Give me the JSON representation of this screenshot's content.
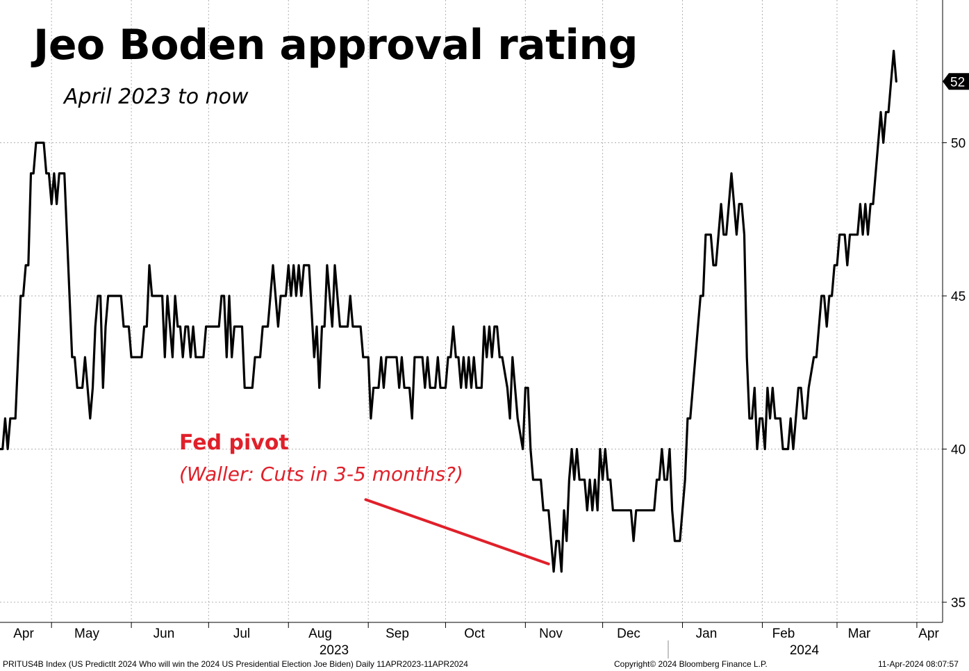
{
  "colors": {
    "line": "#000000",
    "grid": "#b0b0b0",
    "annotation": "#e0202a",
    "background": "#ffffff"
  },
  "chart_data": {
    "type": "line",
    "title": "Jeo Boden approval rating",
    "subtitle": "April 2023 to now",
    "ylim": [
      34,
      54
    ],
    "yticks": [
      "35",
      "40",
      "45",
      "50"
    ],
    "last_value_label": "52",
    "last_value": 52,
    "x_months": [
      "Apr",
      "May",
      "Jun",
      "Jul",
      "Aug",
      "Sep",
      "Oct",
      "Nov",
      "Dec",
      "Jan",
      "Feb",
      "Mar",
      "Apr"
    ],
    "year_labels": [
      "2023",
      "2024"
    ],
    "grid": true,
    "x_range": [
      "2023-04-11",
      "2024-04-11"
    ],
    "series": [
      {
        "points": [
          [
            "2023-04-11",
            40
          ],
          [
            "2023-04-12",
            40
          ],
          [
            "2023-04-13",
            41
          ],
          [
            "2023-04-14",
            40
          ],
          [
            "2023-04-15",
            41
          ],
          [
            "2023-04-17",
            41
          ],
          [
            "2023-04-18",
            43
          ],
          [
            "2023-04-19",
            45
          ],
          [
            "2023-04-20",
            45
          ],
          [
            "2023-04-21",
            46
          ],
          [
            "2023-04-22",
            46
          ],
          [
            "2023-04-23",
            49
          ],
          [
            "2023-04-24",
            49
          ],
          [
            "2023-04-25",
            50
          ],
          [
            "2023-04-28",
            50
          ],
          [
            "2023-04-29",
            49
          ],
          [
            "2023-04-30",
            49
          ],
          [
            "2023-05-01",
            48
          ],
          [
            "2023-05-02",
            49
          ],
          [
            "2023-05-03",
            48
          ],
          [
            "2023-05-04",
            49
          ],
          [
            "2023-05-06",
            49
          ],
          [
            "2023-05-07",
            47
          ],
          [
            "2023-05-09",
            43
          ],
          [
            "2023-05-10",
            43
          ],
          [
            "2023-05-11",
            42
          ],
          [
            "2023-05-13",
            42
          ],
          [
            "2023-05-14",
            43
          ],
          [
            "2023-05-16",
            41
          ],
          [
            "2023-05-17",
            42
          ],
          [
            "2023-05-18",
            44
          ],
          [
            "2023-05-19",
            45
          ],
          [
            "2023-05-20",
            45
          ],
          [
            "2023-05-21",
            42
          ],
          [
            "2023-05-22",
            44
          ],
          [
            "2023-05-23",
            45
          ],
          [
            "2023-05-28",
            45
          ],
          [
            "2023-05-29",
            44
          ],
          [
            "2023-05-31",
            44
          ],
          [
            "2023-06-01",
            43
          ],
          [
            "2023-06-05",
            43
          ],
          [
            "2023-06-06",
            44
          ],
          [
            "2023-06-07",
            44
          ],
          [
            "2023-06-08",
            46
          ],
          [
            "2023-06-09",
            45
          ],
          [
            "2023-06-13",
            45
          ],
          [
            "2023-06-14",
            43
          ],
          [
            "2023-06-15",
            45
          ],
          [
            "2023-06-16",
            44
          ],
          [
            "2023-06-17",
            43
          ],
          [
            "2023-06-18",
            45
          ],
          [
            "2023-06-19",
            44
          ],
          [
            "2023-06-20",
            44
          ],
          [
            "2023-06-21",
            43
          ],
          [
            "2023-06-22",
            44
          ],
          [
            "2023-06-23",
            44
          ],
          [
            "2023-06-24",
            43
          ],
          [
            "2023-06-25",
            44
          ],
          [
            "2023-06-26",
            43
          ],
          [
            "2023-06-29",
            43
          ],
          [
            "2023-06-30",
            44
          ],
          [
            "2023-07-05",
            44
          ],
          [
            "2023-07-06",
            45
          ],
          [
            "2023-07-07",
            45
          ],
          [
            "2023-07-08",
            43
          ],
          [
            "2023-07-09",
            45
          ],
          [
            "2023-07-10",
            43
          ],
          [
            "2023-07-11",
            44
          ],
          [
            "2023-07-14",
            44
          ],
          [
            "2023-07-15",
            42
          ],
          [
            "2023-07-18",
            42
          ],
          [
            "2023-07-19",
            43
          ],
          [
            "2023-07-21",
            43
          ],
          [
            "2023-07-22",
            44
          ],
          [
            "2023-07-24",
            44
          ],
          [
            "2023-07-25",
            45
          ],
          [
            "2023-07-26",
            46
          ],
          [
            "2023-07-28",
            44
          ],
          [
            "2023-07-29",
            45
          ],
          [
            "2023-07-31",
            45
          ],
          [
            "2023-08-01",
            46
          ],
          [
            "2023-08-02",
            45
          ],
          [
            "2023-08-03",
            46
          ],
          [
            "2023-08-04",
            45
          ],
          [
            "2023-08-05",
            46
          ],
          [
            "2023-08-06",
            45
          ],
          [
            "2023-08-07",
            46
          ],
          [
            "2023-08-09",
            46
          ],
          [
            "2023-08-11",
            43
          ],
          [
            "2023-08-12",
            44
          ],
          [
            "2023-08-13",
            42
          ],
          [
            "2023-08-14",
            44
          ],
          [
            "2023-08-15",
            44
          ],
          [
            "2023-08-16",
            46
          ],
          [
            "2023-08-18",
            44
          ],
          [
            "2023-08-19",
            46
          ],
          [
            "2023-08-21",
            44
          ],
          [
            "2023-08-24",
            44
          ],
          [
            "2023-08-25",
            45
          ],
          [
            "2023-08-26",
            44
          ],
          [
            "2023-08-29",
            44
          ],
          [
            "2023-08-30",
            43
          ],
          [
            "2023-09-01",
            43
          ],
          [
            "2023-09-02",
            41
          ],
          [
            "2023-09-03",
            42
          ],
          [
            "2023-09-05",
            42
          ],
          [
            "2023-09-06",
            43
          ],
          [
            "2023-09-07",
            42
          ],
          [
            "2023-09-08",
            43
          ],
          [
            "2023-09-12",
            43
          ],
          [
            "2023-09-13",
            42
          ],
          [
            "2023-09-14",
            43
          ],
          [
            "2023-09-15",
            42
          ],
          [
            "2023-09-17",
            42
          ],
          [
            "2023-09-18",
            41
          ],
          [
            "2023-09-19",
            43
          ],
          [
            "2023-09-22",
            43
          ],
          [
            "2023-09-23",
            42
          ],
          [
            "2023-09-24",
            43
          ],
          [
            "2023-09-25",
            42
          ],
          [
            "2023-09-27",
            42
          ],
          [
            "2023-09-28",
            43
          ],
          [
            "2023-09-29",
            42
          ],
          [
            "2023-10-01",
            42
          ],
          [
            "2023-10-02",
            43
          ],
          [
            "2023-10-03",
            43
          ],
          [
            "2023-10-04",
            44
          ],
          [
            "2023-10-05",
            43
          ],
          [
            "2023-10-06",
            43
          ],
          [
            "2023-10-07",
            42
          ],
          [
            "2023-10-08",
            43
          ],
          [
            "2023-10-09",
            42
          ],
          [
            "2023-10-10",
            43
          ],
          [
            "2023-10-11",
            42
          ],
          [
            "2023-10-12",
            43
          ],
          [
            "2023-10-13",
            42
          ],
          [
            "2023-10-15",
            42
          ],
          [
            "2023-10-16",
            44
          ],
          [
            "2023-10-17",
            43
          ],
          [
            "2023-10-18",
            44
          ],
          [
            "2023-10-19",
            43
          ],
          [
            "2023-10-20",
            44
          ],
          [
            "2023-10-21",
            44
          ],
          [
            "2023-10-22",
            43
          ],
          [
            "2023-10-23",
            43
          ],
          [
            "2023-10-25",
            42
          ],
          [
            "2023-10-26",
            41
          ],
          [
            "2023-10-27",
            43
          ],
          [
            "2023-10-28",
            42
          ],
          [
            "2023-10-29",
            41
          ],
          [
            "2023-10-31",
            40
          ],
          [
            "2023-11-01",
            42
          ],
          [
            "2023-11-02",
            42
          ],
          [
            "2023-11-03",
            40
          ],
          [
            "2023-11-04",
            39
          ],
          [
            "2023-11-07",
            39
          ],
          [
            "2023-11-08",
            38
          ],
          [
            "2023-11-10",
            38
          ],
          [
            "2023-11-11",
            37
          ],
          [
            "2023-11-12",
            36
          ],
          [
            "2023-11-13",
            37
          ],
          [
            "2023-11-14",
            37
          ],
          [
            "2023-11-15",
            36
          ],
          [
            "2023-11-16",
            38
          ],
          [
            "2023-11-17",
            37
          ],
          [
            "2023-11-18",
            39
          ],
          [
            "2023-11-19",
            40
          ],
          [
            "2023-11-20",
            39
          ],
          [
            "2023-11-21",
            40
          ],
          [
            "2023-11-22",
            39
          ],
          [
            "2023-11-24",
            39
          ],
          [
            "2023-11-25",
            38
          ],
          [
            "2023-11-26",
            39
          ],
          [
            "2023-11-27",
            38
          ],
          [
            "2023-11-28",
            39
          ],
          [
            "2023-11-29",
            38
          ],
          [
            "2023-11-30",
            40
          ],
          [
            "2023-12-01",
            39
          ],
          [
            "2023-12-02",
            40
          ],
          [
            "2023-12-03",
            39
          ],
          [
            "2023-12-04",
            39
          ],
          [
            "2023-12-05",
            38
          ],
          [
            "2023-12-12",
            38
          ],
          [
            "2023-12-13",
            37
          ],
          [
            "2023-12-14",
            38
          ],
          [
            "2023-12-21",
            38
          ],
          [
            "2023-12-22",
            39
          ],
          [
            "2023-12-23",
            39
          ],
          [
            "2023-12-24",
            40
          ],
          [
            "2023-12-25",
            39
          ],
          [
            "2023-12-26",
            39
          ],
          [
            "2023-12-27",
            40
          ],
          [
            "2023-12-28",
            38
          ],
          [
            "2023-12-29",
            37
          ],
          [
            "2023-12-31",
            37
          ],
          [
            "2024-01-01",
            38
          ],
          [
            "2024-01-02",
            39
          ],
          [
            "2024-01-03",
            41
          ],
          [
            "2024-01-04",
            41
          ],
          [
            "2024-01-05",
            42
          ],
          [
            "2024-01-06",
            43
          ],
          [
            "2024-01-07",
            44
          ],
          [
            "2024-01-08",
            45
          ],
          [
            "2024-01-09",
            45
          ],
          [
            "2024-01-10",
            47
          ],
          [
            "2024-01-12",
            47
          ],
          [
            "2024-01-13",
            46
          ],
          [
            "2024-01-14",
            46
          ],
          [
            "2024-01-15",
            47
          ],
          [
            "2024-01-16",
            48
          ],
          [
            "2024-01-17",
            47
          ],
          [
            "2024-01-18",
            47
          ],
          [
            "2024-01-19",
            48
          ],
          [
            "2024-01-20",
            49
          ],
          [
            "2024-01-21",
            48
          ],
          [
            "2024-01-22",
            47
          ],
          [
            "2024-01-23",
            48
          ],
          [
            "2024-01-24",
            48
          ],
          [
            "2024-01-25",
            47
          ],
          [
            "2024-01-26",
            43
          ],
          [
            "2024-01-27",
            41
          ],
          [
            "2024-01-28",
            41
          ],
          [
            "2024-01-29",
            42
          ],
          [
            "2024-01-30",
            40
          ],
          [
            "2024-01-31",
            41
          ],
          [
            "2024-02-01",
            41
          ],
          [
            "2024-02-02",
            40
          ],
          [
            "2024-02-03",
            42
          ],
          [
            "2024-02-04",
            41
          ],
          [
            "2024-02-05",
            42
          ],
          [
            "2024-02-06",
            41
          ],
          [
            "2024-02-08",
            41
          ],
          [
            "2024-02-09",
            40
          ],
          [
            "2024-02-11",
            40
          ],
          [
            "2024-02-12",
            41
          ],
          [
            "2024-02-13",
            40
          ],
          [
            "2024-02-14",
            41
          ],
          [
            "2024-02-15",
            42
          ],
          [
            "2024-02-16",
            42
          ],
          [
            "2024-02-17",
            41
          ],
          [
            "2024-02-18",
            41
          ],
          [
            "2024-02-19",
            42
          ],
          [
            "2024-02-21",
            43
          ],
          [
            "2024-02-22",
            43
          ],
          [
            "2024-02-23",
            44
          ],
          [
            "2024-02-24",
            45
          ],
          [
            "2024-02-25",
            45
          ],
          [
            "2024-02-26",
            44
          ],
          [
            "2024-02-27",
            45
          ],
          [
            "2024-02-28",
            45
          ],
          [
            "2024-02-29",
            46
          ],
          [
            "2024-03-01",
            46
          ],
          [
            "2024-03-02",
            47
          ],
          [
            "2024-03-04",
            47
          ],
          [
            "2024-03-05",
            46
          ],
          [
            "2024-03-06",
            47
          ],
          [
            "2024-03-09",
            47
          ],
          [
            "2024-03-10",
            48
          ],
          [
            "2024-03-11",
            47
          ],
          [
            "2024-03-12",
            48
          ],
          [
            "2024-03-13",
            47
          ],
          [
            "2024-03-14",
            48
          ],
          [
            "2024-03-15",
            48
          ],
          [
            "2024-03-16",
            49
          ],
          [
            "2024-03-17",
            50
          ],
          [
            "2024-03-18",
            51
          ],
          [
            "2024-03-19",
            50
          ],
          [
            "2024-03-20",
            51
          ],
          [
            "2024-03-21",
            51
          ],
          [
            "2024-03-22",
            52
          ],
          [
            "2024-03-23",
            53
          ],
          [
            "2024-03-24",
            52
          ]
        ]
      }
    ],
    "annotation": {
      "title": "Fed pivot",
      "text": "(Waller: Cuts in 3-5 months?)",
      "arrow_from": [
        "2023-08-31",
        38.35
      ],
      "arrow_to": [
        "2023-11-10",
        36.25
      ]
    }
  },
  "footer": {
    "source": "PRITUS4B Index (US PredictIt 2024 Who will win the 2024 US Presidential Election Joe Biden)  Daily 11APR2023-11APR2024",
    "copyright": "Copyright© 2024 Bloomberg Finance L.P.",
    "timestamp": "11-Apr-2024 08:07:57"
  }
}
